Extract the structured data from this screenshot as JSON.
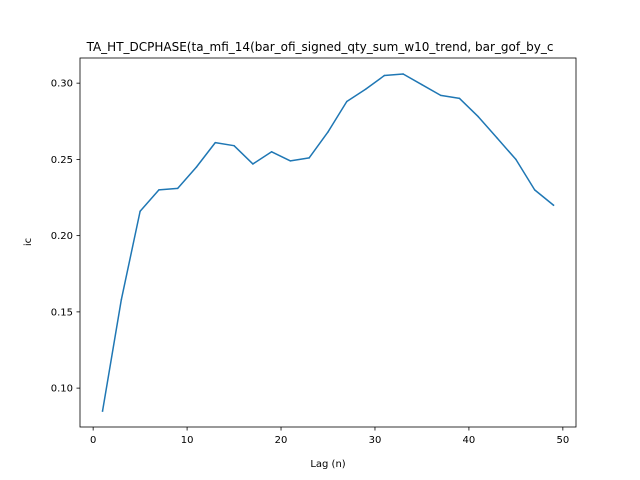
{
  "chart_data": {
    "type": "line",
    "title": "TA_HT_DCPHASE(ta_mfi_14(bar_ofi_signed_qty_sum_w10_trend, bar_gof_by_c",
    "xlabel": "Lag (n)",
    "ylabel": "ic",
    "xlim": [
      -1.4,
      51.4
    ],
    "ylim": [
      0.0745,
      0.3165
    ],
    "xticks": [
      0,
      10,
      20,
      30,
      40,
      50
    ],
    "yticks": [
      0.1,
      0.15,
      0.2,
      0.25,
      0.3
    ],
    "xtick_labels": [
      "0",
      "10",
      "20",
      "30",
      "40",
      "50"
    ],
    "ytick_labels": [
      "0.10",
      "0.15",
      "0.20",
      "0.25",
      "0.30"
    ],
    "grid": false,
    "series": [
      {
        "color": "#1f77b4",
        "x": [
          1,
          3,
          5,
          7,
          9,
          11,
          13,
          15,
          17,
          19,
          21,
          23,
          25,
          27,
          29,
          31,
          33,
          35,
          37,
          39,
          41,
          43,
          45,
          47,
          49
        ],
        "values": [
          0.085,
          0.158,
          0.216,
          0.23,
          0.231,
          0.245,
          0.261,
          0.259,
          0.247,
          0.255,
          0.249,
          0.251,
          0.268,
          0.288,
          0.296,
          0.305,
          0.306,
          0.299,
          0.292,
          0.29,
          0.278,
          0.264,
          0.25,
          0.23,
          0.22
        ]
      }
    ]
  }
}
